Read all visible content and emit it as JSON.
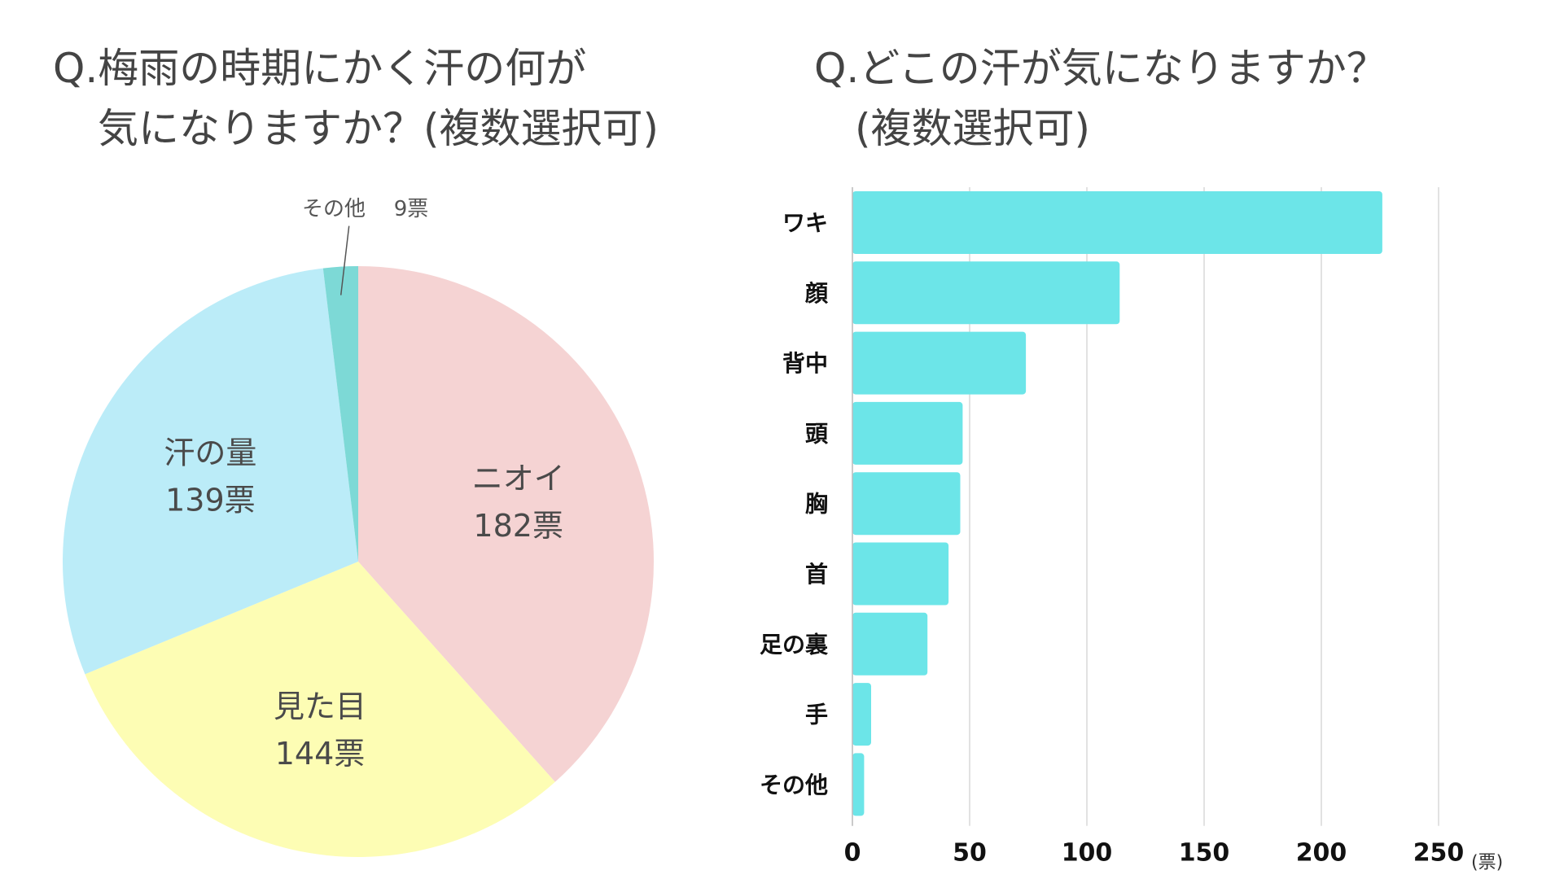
{
  "chart_data": [
    {
      "type": "pie",
      "title_line1": "Q.梅雨の時期にかく汗の何が",
      "title_line2": "気になりますか？(複数選択可)",
      "slices": [
        {
          "label": "ニオイ",
          "value": 182,
          "value_text": "182票",
          "color": "#f5d3d3"
        },
        {
          "label": "見た目",
          "value": 144,
          "value_text": "144票",
          "color": "#fdfdb4"
        },
        {
          "label": "汗の量",
          "value": 139,
          "value_text": "139票",
          "color": "#bbecf8"
        },
        {
          "label": "その他",
          "value": 9,
          "value_text": "9票",
          "color": "#7dd9d6"
        }
      ]
    },
    {
      "type": "bar",
      "orientation": "horizontal",
      "title_line1": "Q.どこの汗が気になりますか？",
      "title_line2": "(複数選択可)",
      "categories": [
        "ワキ",
        "顔",
        "背中",
        "頭",
        "胸",
        "首",
        "足の裏",
        "手",
        "その他"
      ],
      "values": [
        226,
        114,
        74,
        47,
        46,
        41,
        32,
        8,
        5
      ],
      "xlim": [
        0,
        250
      ],
      "xticks": [
        0,
        50,
        100,
        150,
        200,
        250
      ],
      "unit": "(票)",
      "bar_color": "#6ce5e8",
      "grid_color": "#d9d9d9"
    }
  ]
}
